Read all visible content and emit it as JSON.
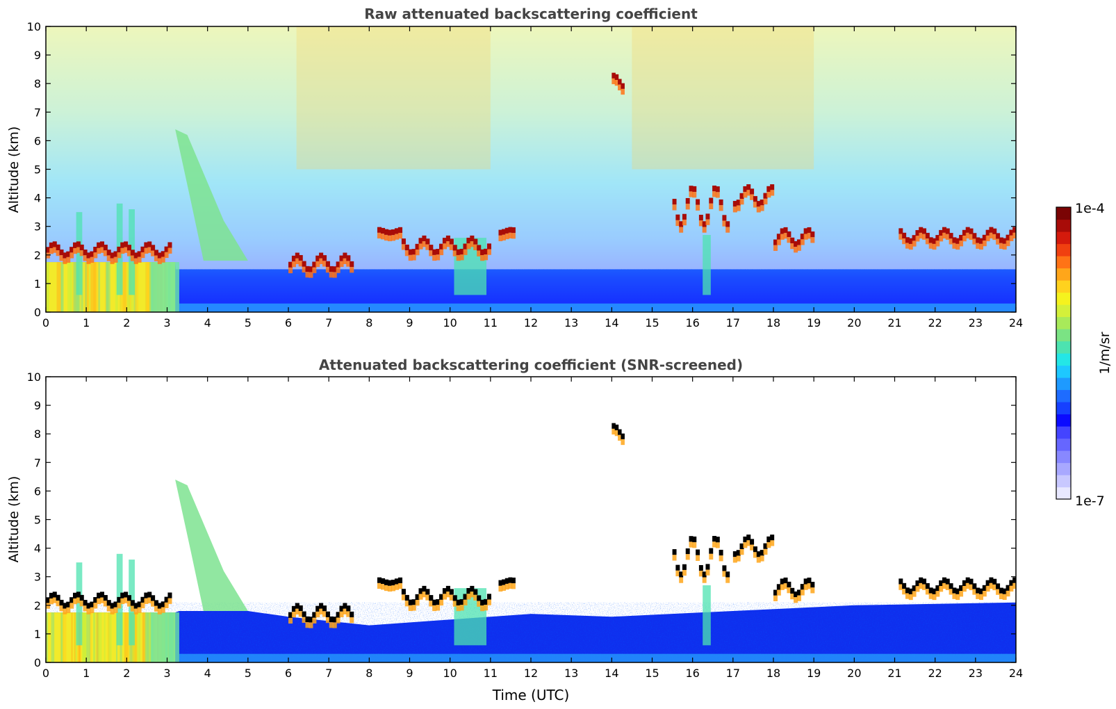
{
  "figure": {
    "colorbar": {
      "top_label": "1e-4",
      "bottom_label": "1e-7",
      "unit_label": "1/m/sr",
      "colors": [
        "#0b0bff",
        "#1640ff",
        "#1e6cff",
        "#1e9aff",
        "#1ec8ff",
        "#24e6e6",
        "#4de3b0",
        "#7be384",
        "#a8ea5a",
        "#d4f03a",
        "#f5f21e",
        "#ffd21e",
        "#ffa61a",
        "#ff7316",
        "#f04010",
        "#d41a0c",
        "#a80c08",
        "#7a0404"
      ],
      "faint_colors": [
        "#e8e8ff",
        "#c8c8ff",
        "#a8a8ff",
        "#8888ff",
        "#6666ff",
        "#4444ff"
      ]
    },
    "xlabel": "Time (UTC)"
  },
  "chart_data": [
    {
      "type": "heatmap",
      "title": "Raw attenuated backscattering coefficient",
      "xlabel": "",
      "ylabel": "Altitude (km)",
      "xlim": [
        0,
        24
      ],
      "ylim": [
        0,
        10
      ],
      "xticks": [
        "0",
        "1",
        "2",
        "3",
        "4",
        "5",
        "6",
        "7",
        "8",
        "9",
        "10",
        "11",
        "12",
        "13",
        "14",
        "15",
        "16",
        "17",
        "18",
        "19",
        "20",
        "21",
        "22",
        "23",
        "24"
      ],
      "yticks": [
        "0",
        "1",
        "2",
        "3",
        "4",
        "5",
        "6",
        "7",
        "8",
        "9",
        "10"
      ],
      "colorscale": "jet (log)",
      "value_range": [
        "1e-7",
        "1e-4"
      ],
      "features": {
        "boundary_layer": [
          [
            0,
            1.75
          ],
          [
            3.2,
            1.75
          ],
          [
            3.3,
            0.3
          ],
          [
            24,
            0.3
          ]
        ],
        "cloud_layers": [
          {
            "x": [
              0.0,
              3.1
            ],
            "y": [
              2.0,
              2.4
            ]
          },
          {
            "x": [
              6.0,
              7.6
            ],
            "y": [
              1.5,
              2.0
            ]
          },
          {
            "x": [
              8.2,
              8.8
            ],
            "y": [
              2.8,
              2.9
            ]
          },
          {
            "x": [
              8.8,
              11.0
            ],
            "y": [
              2.1,
              2.6
            ]
          },
          {
            "x": [
              11.2,
              11.6
            ],
            "y": [
              2.8,
              2.9
            ]
          },
          {
            "x": [
              14.0,
              14.3
            ],
            "y": [
              7.9,
              8.3
            ]
          },
          {
            "x": [
              15.5,
              16.9
            ],
            "y": [
              3.1,
              4.4
            ]
          },
          {
            "x": [
              17.0,
              18.0
            ],
            "y": [
              3.8,
              4.4
            ]
          },
          {
            "x": [
              18.0,
              19.0
            ],
            "y": [
              2.4,
              2.9
            ]
          },
          {
            "x": [
              21.1,
              24.0
            ],
            "y": [
              2.5,
              2.9
            ]
          }
        ],
        "aerosol_plume": {
          "x": [
            3.2,
            5.0
          ],
          "y": [
            1.8,
            6.4
          ]
        },
        "noise_high_periods": [
          [
            6.2,
            11.0
          ],
          [
            14.5,
            19.0
          ]
        ]
      }
    },
    {
      "type": "heatmap",
      "title": "Attenuated backscattering coefficient (SNR-screened)",
      "xlabel": "Time (UTC)",
      "ylabel": "Altitude (km)",
      "xlim": [
        0,
        24
      ],
      "ylim": [
        0,
        10
      ],
      "xticks": [
        "0",
        "1",
        "2",
        "3",
        "4",
        "5",
        "6",
        "7",
        "8",
        "9",
        "10",
        "11",
        "12",
        "13",
        "14",
        "15",
        "16",
        "17",
        "18",
        "19",
        "20",
        "21",
        "22",
        "23",
        "24"
      ],
      "yticks": [
        "0",
        "1",
        "2",
        "3",
        "4",
        "5",
        "6",
        "7",
        "8",
        "9",
        "10"
      ],
      "colorscale": "jet (log)",
      "value_range": [
        "1e-7",
        "1e-4"
      ],
      "features": {
        "boundary_layer": [
          [
            0,
            1.75
          ],
          [
            3.2,
            1.75
          ],
          [
            3.3,
            1.8
          ],
          [
            5.0,
            1.8
          ],
          [
            6.0,
            1.6
          ],
          [
            8.0,
            1.3
          ],
          [
            12.0,
            1.7
          ],
          [
            14.0,
            1.6
          ],
          [
            17.0,
            1.8
          ],
          [
            20.0,
            2.0
          ],
          [
            24.0,
            2.1
          ]
        ],
        "screened_out_regions": [
          [
            8.0,
            11.0,
            1.8,
            2.4
          ],
          [
            11.0,
            17.0,
            1.2,
            3.0
          ]
        ]
      }
    }
  ]
}
